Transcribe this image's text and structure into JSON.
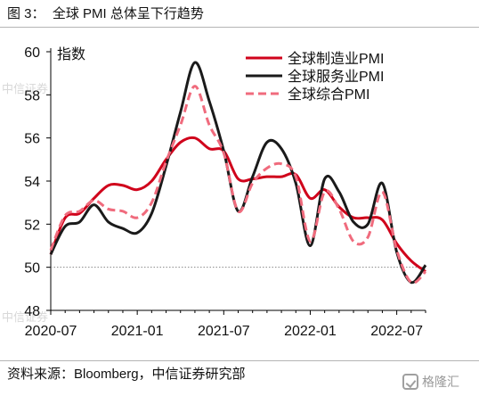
{
  "figure_title": "图 3：  全球 PMI 总体呈下行趋势",
  "source": "资料来源：Bloomberg，中信证券研究部",
  "watermark_text": "格隆汇",
  "colors": {
    "manufacturing": "#d0021b",
    "services": "#1a1a1a",
    "composite": "#f06b7d",
    "axis": "#000000",
    "baseline": "#888888",
    "watermark": "#d8d8d8"
  },
  "chart_data": {
    "type": "line",
    "ylabel": "指数",
    "xlabel": "",
    "ylim": [
      48,
      60
    ],
    "yticks": [
      48,
      50,
      52,
      54,
      56,
      58,
      60
    ],
    "xtick_labels": [
      "2020-07",
      "2021-01",
      "2021-07",
      "2022-01",
      "2022-07"
    ],
    "reference_line": 50,
    "legend_position": "top-right",
    "grid": false,
    "x": [
      "2020-07",
      "2020-08",
      "2020-09",
      "2020-10",
      "2020-11",
      "2020-12",
      "2021-01",
      "2021-02",
      "2021-03",
      "2021-04",
      "2021-05",
      "2021-06",
      "2021-07",
      "2021-08",
      "2021-09",
      "2021-10",
      "2021-11",
      "2021-12",
      "2022-01",
      "2022-02",
      "2022-03",
      "2022-04",
      "2022-05",
      "2022-06",
      "2022-07",
      "2022-08",
      "2022-09"
    ],
    "series": [
      {
        "name": "全球制造业PMI",
        "style": "solid",
        "values": [
          50.6,
          52.3,
          52.5,
          53.2,
          53.8,
          53.8,
          53.6,
          54.0,
          55.0,
          55.8,
          56.0,
          55.5,
          55.4,
          54.1,
          54.1,
          54.2,
          54.2,
          54.3,
          53.2,
          53.6,
          52.8,
          52.3,
          52.3,
          52.2,
          51.1,
          50.3,
          49.8
        ]
      },
      {
        "name": "全球服务业PMI",
        "style": "solid",
        "values": [
          50.6,
          51.9,
          52.1,
          52.9,
          52.1,
          51.8,
          51.6,
          52.5,
          54.7,
          57.2,
          59.5,
          57.7,
          55.4,
          52.6,
          54.2,
          55.8,
          55.5,
          53.9,
          51.0,
          54.1,
          53.5,
          52.1,
          52.0,
          53.9,
          50.7,
          49.3,
          50.1
        ]
      },
      {
        "name": "全球综合PMI",
        "style": "dashed",
        "values": [
          50.8,
          52.4,
          52.6,
          53.1,
          52.7,
          52.6,
          52.3,
          53.0,
          54.9,
          56.6,
          58.4,
          56.6,
          55.3,
          52.6,
          53.9,
          54.6,
          54.8,
          54.2,
          51.2,
          53.5,
          52.7,
          51.2,
          51.4,
          53.5,
          50.8,
          49.3,
          49.8
        ]
      }
    ]
  }
}
